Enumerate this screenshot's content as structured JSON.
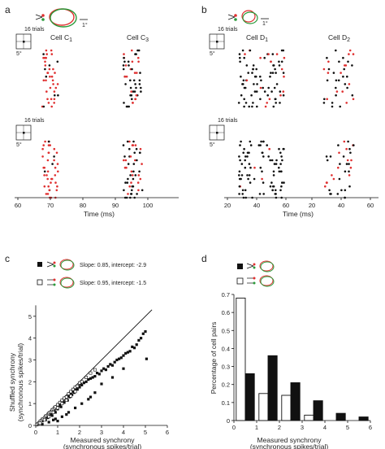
{
  "figure": {
    "panel_a": {
      "letter": "a",
      "cell1_label": "Cell C",
      "cell1_sub": "1",
      "cell2_label": "Cell C",
      "cell2_sub": "3",
      "trials_label": "16 trials",
      "scale_deg": "5°",
      "rf_scale_deg": "1°",
      "x_ticks": [
        "60",
        "70",
        "80",
        "90",
        "100"
      ],
      "x_label": "Time (ms)"
    },
    "panel_b": {
      "letter": "b",
      "cell1_label": "Cell D",
      "cell1_sub": "1",
      "cell2_label": "Cell D",
      "cell2_sub": "2",
      "trials_label": "16 trials",
      "scale_deg": "5°",
      "rf_scale_deg": "1°",
      "x_ticks": [
        "20",
        "40",
        "60",
        "20",
        "40",
        "60"
      ],
      "x_label": "Time (ms)"
    },
    "panel_c": {
      "letter": "c",
      "legend_filled": "Slope: 0.85, intercept: -2.9",
      "legend_open": "Slope: 0.95, intercept: -1.5",
      "y_label_line1": "Shuffled synchrony",
      "y_label_line2": "(synchronous spikes/trial)",
      "x_label_line1": "Measured synchrony",
      "x_label_line2": "(synchronous spikes/trial)"
    },
    "panel_d": {
      "letter": "d",
      "y_label": "Percentage of cell pairs",
      "x_label_line1": "Measured synchrony",
      "x_label_line2": "(synchronous spikes/trial)"
    },
    "colors": {
      "red": "#e03030",
      "green": "#2a9a3a",
      "black": "#111111"
    }
  },
  "chart_data": [
    {
      "type": "scatter",
      "xlabel": "Measured synchrony (synchronous spikes/trial)",
      "ylabel": "Shuffled synchrony (synchronous spikes/trial)",
      "xlim": [
        0,
        6
      ],
      "ylim": [
        0,
        6
      ],
      "x_ticks": [
        0,
        1,
        2,
        3,
        4,
        5,
        6
      ],
      "y_ticks": [
        0,
        1,
        2,
        3,
        4,
        5
      ],
      "identity_line": true,
      "series": [
        {
          "name": "filled",
          "marker": "filled-square",
          "points": [
            [
              0.05,
              0.02
            ],
            [
              0.1,
              0.05
            ],
            [
              0.15,
              0.1
            ],
            [
              0.2,
              0.1
            ],
            [
              0.25,
              0.2
            ],
            [
              0.3,
              0.2
            ],
            [
              0.35,
              0.25
            ],
            [
              0.4,
              0.3
            ],
            [
              0.45,
              0.25
            ],
            [
              0.5,
              0.4
            ],
            [
              0.55,
              0.35
            ],
            [
              0.6,
              0.45
            ],
            [
              0.65,
              0.5
            ],
            [
              0.7,
              0.55
            ],
            [
              0.75,
              0.45
            ],
            [
              0.8,
              0.6
            ],
            [
              0.85,
              0.7
            ],
            [
              0.9,
              0.6
            ],
            [
              0.95,
              0.8
            ],
            [
              1.0,
              0.75
            ],
            [
              1.05,
              0.9
            ],
            [
              1.1,
              0.95
            ],
            [
              1.15,
              0.85
            ],
            [
              1.2,
              1.0
            ],
            [
              1.25,
              1.1
            ],
            [
              1.3,
              1.05
            ],
            [
              1.35,
              1.2
            ],
            [
              1.4,
              1.25
            ],
            [
              1.45,
              1.15
            ],
            [
              1.5,
              1.35
            ],
            [
              1.55,
              1.3
            ],
            [
              1.6,
              1.45
            ],
            [
              1.65,
              1.4
            ],
            [
              1.7,
              1.55
            ],
            [
              1.75,
              1.5
            ],
            [
              1.8,
              1.6
            ],
            [
              1.85,
              1.7
            ],
            [
              1.9,
              1.65
            ],
            [
              1.95,
              1.8
            ],
            [
              2.0,
              1.75
            ],
            [
              2.05,
              1.9
            ],
            [
              2.1,
              1.85
            ],
            [
              2.2,
              1.95
            ],
            [
              2.3,
              2.0
            ],
            [
              2.4,
              2.1
            ],
            [
              2.5,
              2.15
            ],
            [
              2.6,
              2.2
            ],
            [
              2.7,
              2.25
            ],
            [
              2.8,
              2.4
            ],
            [
              2.9,
              2.35
            ],
            [
              3.0,
              2.5
            ],
            [
              3.1,
              2.6
            ],
            [
              3.2,
              2.55
            ],
            [
              3.3,
              2.7
            ],
            [
              3.4,
              2.8
            ],
            [
              3.5,
              2.75
            ],
            [
              3.6,
              2.9
            ],
            [
              3.7,
              3.0
            ],
            [
              3.8,
              3.05
            ],
            [
              3.9,
              3.1
            ],
            [
              4.0,
              3.2
            ],
            [
              4.1,
              3.3
            ],
            [
              4.2,
              3.35
            ],
            [
              4.3,
              3.4
            ],
            [
              4.4,
              3.6
            ],
            [
              4.5,
              3.55
            ],
            [
              4.6,
              3.7
            ],
            [
              4.7,
              3.9
            ],
            [
              4.8,
              4.0
            ],
            [
              4.9,
              4.2
            ],
            [
              5.0,
              4.3
            ],
            [
              5.05,
              3.05
            ],
            [
              0.6,
              0.15
            ],
            [
              0.9,
              0.3
            ],
            [
              1.2,
              0.4
            ],
            [
              1.5,
              0.6
            ],
            [
              1.8,
              0.8
            ],
            [
              2.1,
              1.0
            ],
            [
              2.4,
              1.2
            ],
            [
              2.7,
              1.5
            ],
            [
              1.0,
              0.2
            ],
            [
              1.4,
              0.5
            ],
            [
              0.3,
              0.05
            ],
            [
              0.8,
              0.25
            ],
            [
              2.5,
              1.3
            ],
            [
              3.0,
              1.9
            ],
            [
              3.5,
              2.2
            ],
            [
              4.0,
              2.6
            ]
          ]
        },
        {
          "name": "open",
          "marker": "open-square",
          "points": [
            [
              0.05,
              0.04
            ],
            [
              0.1,
              0.08
            ],
            [
              0.15,
              0.12
            ],
            [
              0.2,
              0.18
            ],
            [
              0.25,
              0.22
            ],
            [
              0.3,
              0.28
            ],
            [
              0.35,
              0.3
            ],
            [
              0.4,
              0.35
            ],
            [
              0.45,
              0.42
            ],
            [
              0.5,
              0.45
            ],
            [
              0.55,
              0.5
            ],
            [
              0.6,
              0.55
            ],
            [
              0.65,
              0.6
            ],
            [
              0.7,
              0.62
            ],
            [
              0.75,
              0.7
            ],
            [
              0.8,
              0.74
            ],
            [
              0.85,
              0.8
            ],
            [
              0.9,
              0.85
            ],
            [
              1.0,
              0.95
            ],
            [
              1.1,
              1.05
            ],
            [
              1.2,
              1.15
            ],
            [
              1.3,
              1.25
            ],
            [
              1.4,
              1.3
            ],
            [
              1.5,
              1.45
            ],
            [
              1.6,
              1.55
            ],
            [
              1.7,
              1.65
            ],
            [
              1.8,
              1.75
            ],
            [
              1.9,
              1.8
            ],
            [
              2.0,
              1.95
            ],
            [
              2.1,
              2.0
            ],
            [
              2.3,
              2.2
            ],
            [
              2.5,
              2.4
            ],
            [
              2.7,
              2.55
            ],
            [
              0.2,
              0.1
            ],
            [
              0.4,
              0.25
            ],
            [
              0.6,
              0.4
            ],
            [
              0.8,
              0.6
            ],
            [
              1.0,
              0.8
            ],
            [
              1.2,
              1.0
            ],
            [
              1.4,
              1.15
            ],
            [
              1.6,
              1.35
            ],
            [
              1.8,
              1.55
            ]
          ]
        }
      ]
    },
    {
      "type": "bar",
      "xlabel": "Measured synchrony (synchronous spikes/trial)",
      "ylabel": "Percentage of cell pairs",
      "xlim": [
        0,
        6
      ],
      "ylim": [
        0,
        0.7
      ],
      "x_ticks": [
        0,
        1,
        2,
        3,
        4,
        5,
        6
      ],
      "y_ticks": [
        0,
        0.1,
        0.2,
        0.3,
        0.4,
        0.5,
        0.6,
        0.7
      ],
      "bin_centers": [
        0.5,
        1.5,
        2.5,
        3.5,
        4.5,
        5.5
      ],
      "series": [
        {
          "name": "open",
          "values": [
            0.68,
            0.15,
            0.14,
            0.03,
            0,
            0
          ]
        },
        {
          "name": "filled",
          "values": [
            0.26,
            0.36,
            0.21,
            0.11,
            0.04,
            0.02
          ]
        }
      ]
    }
  ]
}
